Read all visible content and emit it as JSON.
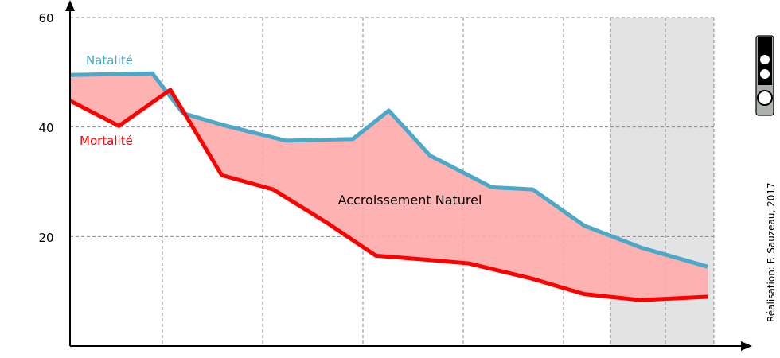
{
  "chart_data": {
    "type": "area",
    "x": [
      0,
      1,
      2,
      3,
      4,
      5,
      6,
      7,
      8,
      9,
      10,
      11,
      12,
      13,
      14
    ],
    "series": [
      {
        "name": "Natalité",
        "color": "#4aa8c8",
        "values": [
          49.5,
          49.8,
          42.5,
          40.3,
          37.5,
          37.8,
          43.0,
          34.8,
          29.0,
          28.6,
          22.0,
          18.0,
          14.5
        ]
      },
      {
        "name": "Mortalité",
        "color": "#ff0000",
        "values": [
          44.8,
          40.2,
          46.8,
          31.2,
          28.6,
          22.5,
          16.5,
          15.8,
          15.1,
          12.4,
          9.5,
          8.4,
          9.0
        ]
      }
    ],
    "x_values": [
      0,
      1.0,
      2.0,
      3.0,
      4.5,
      5.0,
      5.5,
      6.0,
      7.0,
      8.0,
      8.5,
      9.5,
      10.5
    ],
    "ylim": [
      0,
      60
    ],
    "y_ticks": [
      "20",
      "40",
      "60"
    ],
    "fill_label": "Accroissement Naturel",
    "fill_color": "#ffaaaa",
    "projection_shaded": true,
    "grid": true,
    "credit": "Réalisation: F. Sauzeau, 2017",
    "license_badge": "cc-by-nc-icon"
  }
}
